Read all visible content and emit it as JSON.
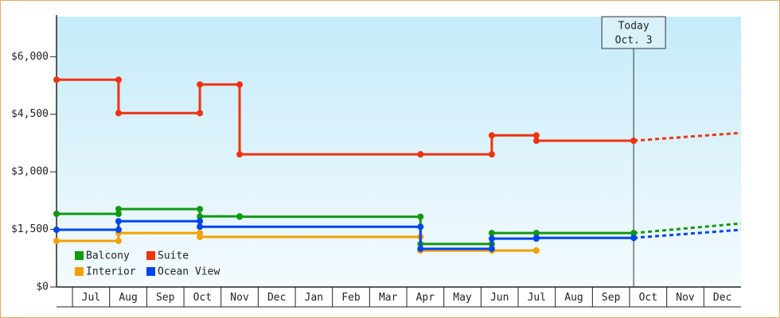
{
  "chart_data": {
    "type": "step",
    "xlim": [
      -0.43,
      18
    ],
    "xticks": [
      {
        "value": 0.5,
        "label": "Jul"
      },
      {
        "value": 1.5,
        "label": "Aug"
      },
      {
        "value": 2.5,
        "label": "Sep"
      },
      {
        "value": 3.5,
        "label": "Oct"
      },
      {
        "value": 4.5,
        "label": "Nov"
      },
      {
        "value": 5.5,
        "label": "Dec"
      },
      {
        "value": 6.5,
        "label": "Jan"
      },
      {
        "value": 7.5,
        "label": "Feb"
      },
      {
        "value": 8.5,
        "label": "Mar"
      },
      {
        "value": 9.5,
        "label": "Apr"
      },
      {
        "value": 10.5,
        "label": "May"
      },
      {
        "value": 11.5,
        "label": "Jun"
      },
      {
        "value": 12.5,
        "label": "Jul"
      },
      {
        "value": 13.5,
        "label": "Aug"
      },
      {
        "value": 14.5,
        "label": "Sep"
      },
      {
        "value": 15.5,
        "label": "Oct"
      },
      {
        "value": 16.5,
        "label": "Nov"
      },
      {
        "value": 17.5,
        "label": "Dec"
      }
    ],
    "ylim": [
      0,
      7000
    ],
    "yticks": [
      {
        "value": 0,
        "label": "$0"
      },
      {
        "value": 1500,
        "label": "$1,500"
      },
      {
        "value": 3000,
        "label": "$3,000"
      },
      {
        "value": 4500,
        "label": "$4,500"
      },
      {
        "value": 6000,
        "label": "$6,000"
      }
    ],
    "today": {
      "x": 15.11,
      "label": [
        "Today",
        "Oct. 3"
      ]
    },
    "legend": "lower left",
    "series": [
      {
        "name": "Balcony",
        "color": "#119911",
        "x": [
          -0.43,
          1.24,
          3.43,
          4.5,
          9.37,
          11.29,
          12.49,
          15.11,
          18
        ],
        "values": [
          1905,
          2030,
          1840,
          1830,
          1120,
          1405,
          1405,
          1405,
          1655
        ]
      },
      {
        "name": "Suite",
        "color": "#ee3311",
        "x": [
          -0.43,
          1.24,
          3.43,
          4.5,
          9.37,
          11.29,
          12.49,
          15.11,
          18
        ],
        "values": [
          5400,
          4530,
          5275,
          3455,
          3455,
          3950,
          3810,
          3810,
          4015
        ]
      },
      {
        "name": "Interior",
        "color": "#f5a000",
        "x": [
          -0.43,
          1.24,
          3.43,
          9.37,
          11.29,
          12.49
        ],
        "values": [
          1200,
          1405,
          1305,
          950,
          950,
          950
        ]
      },
      {
        "name": "Ocean View",
        "color": "#0044ee",
        "x": [
          -0.43,
          1.24,
          3.43,
          9.37,
          11.29,
          12.49,
          15.11,
          18
        ],
        "values": [
          1490,
          1715,
          1570,
          995,
          1260,
          1280,
          1280,
          1490
        ]
      }
    ]
  }
}
